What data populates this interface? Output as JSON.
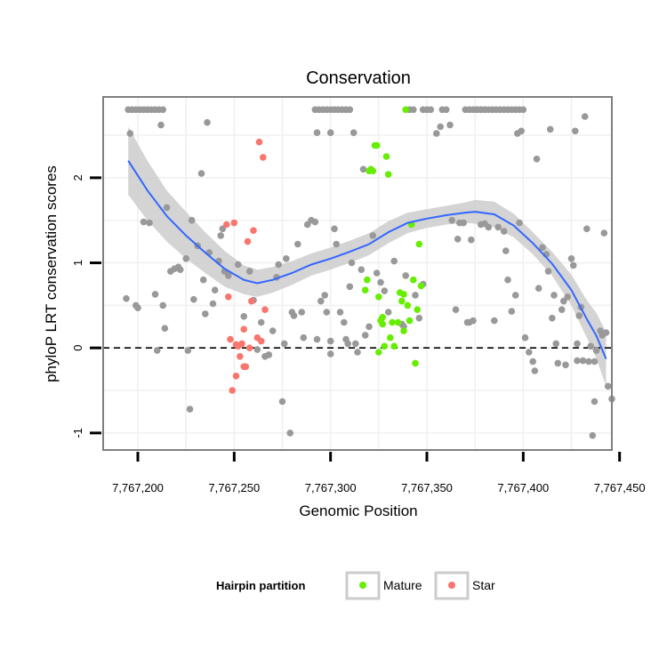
{
  "chart_data": {
    "type": "scatter",
    "title": "Conservation",
    "xlabel": "Genomic Position",
    "ylabel": "phyloP LRT conservation scores",
    "xlim": [
      7767182,
      7767446
    ],
    "ylim": [
      -1.2,
      2.95
    ],
    "xticks": [
      {
        "value": 7767200,
        "label": "7,767,200"
      },
      {
        "value": 7767250,
        "label": "7,767,250"
      },
      {
        "value": 7767300,
        "label": "7,767,300"
      },
      {
        "value": 7767350,
        "label": "7,767,350"
      },
      {
        "value": 7767400,
        "label": "7,767,400"
      },
      {
        "value": 7767450,
        "label": "7,767,450"
      }
    ],
    "yticks": [
      {
        "value": -1,
        "label": "-1"
      },
      {
        "value": 0,
        "label": "0"
      },
      {
        "value": 1,
        "label": "1"
      },
      {
        "value": 2,
        "label": "2"
      }
    ],
    "reference_line": {
      "y": 0,
      "style": "dashed"
    },
    "grid": true,
    "colors": {
      "other": "#999999",
      "mature": "#66ee00",
      "star": "#f8766d",
      "smooth": "#3366ff",
      "ribbon": "#cccccc",
      "panel_border": "#7f7f7f"
    },
    "legend": {
      "title": "Hairpin partition",
      "position": "bottom",
      "entries": [
        {
          "key": "mature",
          "label": "Mature"
        },
        {
          "key": "star",
          "label": "Star"
        }
      ]
    },
    "smooth": {
      "x": [
        7767195,
        7767205,
        7767215,
        7767225,
        7767235,
        7767245,
        7767255,
        7767262,
        7767270,
        7767280,
        7767290,
        7767300,
        7767310,
        7767320,
        7767330,
        7767340,
        7767350,
        7767360,
        7767370,
        7767375,
        7767385,
        7767395,
        7767405,
        7767415,
        7767425,
        7767433,
        7767438,
        7767443
      ],
      "y": [
        2.2,
        1.85,
        1.55,
        1.32,
        1.12,
        0.93,
        0.8,
        0.76,
        0.8,
        0.88,
        0.98,
        1.05,
        1.13,
        1.22,
        1.36,
        1.47,
        1.52,
        1.56,
        1.59,
        1.6,
        1.57,
        1.44,
        1.23,
        0.99,
        0.68,
        0.34,
        0.14,
        -0.13
      ],
      "lower": [
        1.8,
        1.5,
        1.25,
        1.05,
        0.88,
        0.72,
        0.63,
        0.6,
        0.65,
        0.74,
        0.85,
        0.92,
        1.0,
        1.09,
        1.23,
        1.35,
        1.41,
        1.45,
        1.47,
        1.46,
        1.42,
        1.3,
        1.1,
        0.85,
        0.5,
        0.12,
        -0.13,
        -0.45
      ],
      "upper": [
        2.6,
        2.2,
        1.85,
        1.6,
        1.36,
        1.14,
        0.97,
        0.92,
        0.95,
        1.02,
        1.11,
        1.18,
        1.26,
        1.35,
        1.49,
        1.59,
        1.63,
        1.67,
        1.71,
        1.74,
        1.72,
        1.58,
        1.36,
        1.13,
        0.86,
        0.56,
        0.41,
        0.19
      ]
    },
    "series": [
      {
        "key": "other",
        "points": [
          [
            7767195,
            2.8
          ],
          [
            7767197,
            2.8
          ],
          [
            7767199,
            2.8
          ],
          [
            7767201,
            2.8
          ],
          [
            7767203,
            2.8
          ],
          [
            7767205,
            2.8
          ],
          [
            7767207,
            2.8
          ],
          [
            7767209,
            2.8
          ],
          [
            7767211,
            2.8
          ],
          [
            7767213,
            2.8
          ],
          [
            7767196,
            2.52
          ],
          [
            7767194,
            0.58
          ],
          [
            7767199,
            0.5
          ],
          [
            7767200,
            0.47
          ],
          [
            7767203,
            1.48
          ],
          [
            7767206,
            1.47
          ],
          [
            7767209,
            0.63
          ],
          [
            7767210,
            -0.03
          ],
          [
            7767212,
            2.62
          ],
          [
            7767213,
            0.5
          ],
          [
            7767214,
            0.23
          ],
          [
            7767215,
            1.65
          ],
          [
            7767217,
            0.9
          ],
          [
            7767219,
            0.93
          ],
          [
            7767221,
            0.95
          ],
          [
            7767222,
            0.92
          ],
          [
            7767225,
            1.05
          ],
          [
            7767226,
            -0.03
          ],
          [
            7767227,
            -0.72
          ],
          [
            7767228,
            1.5
          ],
          [
            7767229,
            0.57
          ],
          [
            7767231,
            1.2
          ],
          [
            7767233,
            2.05
          ],
          [
            7767234,
            0.8
          ],
          [
            7767235,
            0.4
          ],
          [
            7767236,
            2.65
          ],
          [
            7767237,
            1.12
          ],
          [
            7767239,
            0.52
          ],
          [
            7767240,
            0.68
          ],
          [
            7767242,
            1.02
          ],
          [
            7767243,
            1.32
          ],
          [
            7767244,
            1.4
          ],
          [
            7767245,
            0.9
          ],
          [
            7767247,
            0.85
          ],
          [
            7767252,
            0.98
          ],
          [
            7767255,
            0.37
          ],
          [
            7767258,
            0.9
          ],
          [
            7767260,
            0.56
          ],
          [
            7767262,
            -0.02
          ],
          [
            7767264,
            0.3
          ],
          [
            7767266,
            -0.1
          ],
          [
            7767268,
            -0.08
          ],
          [
            7767270,
            0.2
          ],
          [
            7767272,
            0.83
          ],
          [
            7767273,
            0.98
          ],
          [
            7767275,
            -0.63
          ],
          [
            7767276,
            0.05
          ],
          [
            7767277,
            1.05
          ],
          [
            7767279,
            -1.0
          ],
          [
            7767280,
            0.42
          ],
          [
            7767281,
            0.38
          ],
          [
            7767283,
            1.22
          ],
          [
            7767285,
            0.42
          ],
          [
            7767286,
            0.12
          ],
          [
            7767288,
            1.45
          ],
          [
            7767290,
            1.5
          ],
          [
            7767292,
            1.48
          ],
          [
            7767293,
            0.1
          ],
          [
            7767295,
            0.55
          ],
          [
            7767297,
            0.62
          ],
          [
            7767298,
            0.42
          ],
          [
            7767300,
            -0.07
          ],
          [
            7767300,
            0.08
          ],
          [
            7767292,
            2.8
          ],
          [
            7767294,
            2.8
          ],
          [
            7767296,
            2.8
          ],
          [
            7767298,
            2.8
          ],
          [
            7767300,
            2.8
          ],
          [
            7767302,
            2.8
          ],
          [
            7767304,
            2.8
          ],
          [
            7767306,
            2.8
          ],
          [
            7767308,
            2.8
          ],
          [
            7767310,
            2.8
          ],
          [
            7767293,
            2.53
          ],
          [
            7767300,
            2.53
          ],
          [
            7767302,
            1.4
          ],
          [
            7767303,
            1.22
          ],
          [
            7767305,
            0.42
          ],
          [
            7767307,
            0.3
          ],
          [
            7767308,
            0.1
          ],
          [
            7767309,
            0.05
          ],
          [
            7767310,
            0.72
          ],
          [
            7767311,
            1.0
          ],
          [
            7767312,
            2.53
          ],
          [
            7767313,
            0.05
          ],
          [
            7767314,
            -0.05
          ],
          [
            7767316,
            0.92
          ],
          [
            7767317,
            2.1
          ],
          [
            7767318,
            0.15
          ],
          [
            7767320,
            0.25
          ],
          [
            7767322,
            1.32
          ],
          [
            7767324,
            0.88
          ],
          [
            7767326,
            0.77
          ],
          [
            7767328,
            0.67
          ],
          [
            7767330,
            0.42
          ],
          [
            7767333,
            1.02
          ],
          [
            7767337,
            0.28
          ],
          [
            7767338,
            0.25
          ],
          [
            7767339,
            0.85
          ],
          [
            7767344,
            0.62
          ],
          [
            7767346,
            0.35
          ],
          [
            7767348,
            0.75
          ],
          [
            7767341,
            2.8
          ],
          [
            7767343,
            2.8
          ],
          [
            7767348,
            2.8
          ],
          [
            7767350,
            2.8
          ],
          [
            7767352,
            2.8
          ],
          [
            7767355,
            2.52
          ],
          [
            7767357,
            2.6
          ],
          [
            7767358,
            2.8
          ],
          [
            7767360,
            2.8
          ],
          [
            7767362,
            2.62
          ],
          [
            7767363,
            1.5
          ],
          [
            7767365,
            0.45
          ],
          [
            7767366,
            1.28
          ],
          [
            7767367,
            1.47
          ],
          [
            7767369,
            1.47
          ],
          [
            7767371,
            0.3
          ],
          [
            7767372,
            0.3
          ],
          [
            7767373,
            1.27
          ],
          [
            7767374,
            0.32
          ],
          [
            7767376,
            2.8
          ],
          [
            7767378,
            2.8
          ],
          [
            7767380,
            2.8
          ],
          [
            7767382,
            2.8
          ],
          [
            7767384,
            2.8
          ],
          [
            7767386,
            2.8
          ],
          [
            7767388,
            2.8
          ],
          [
            7767390,
            2.8
          ],
          [
            7767392,
            2.8
          ],
          [
            7767394,
            2.8
          ],
          [
            7767396,
            2.8
          ],
          [
            7767398,
            2.8
          ],
          [
            7767400,
            2.8
          ],
          [
            7767370,
            2.8
          ],
          [
            7767372,
            2.8
          ],
          [
            7767374,
            2.8
          ],
          [
            7767376,
            2.8
          ],
          [
            7767378,
            2.8
          ],
          [
            7767380,
            2.8
          ],
          [
            7767378,
            1.45
          ],
          [
            7767380,
            1.46
          ],
          [
            7767382,
            1.42
          ],
          [
            7767385,
            0.32
          ],
          [
            7767387,
            1.42
          ],
          [
            7767390,
            1.37
          ],
          [
            7767391,
            1.14
          ],
          [
            7767392,
            0.8
          ],
          [
            7767394,
            0.43
          ],
          [
            7767396,
            0.62
          ],
          [
            7767397,
            2.52
          ],
          [
            7767398,
            1.47
          ],
          [
            7767399,
            2.55
          ],
          [
            7767401,
            0.12
          ],
          [
            7767403,
            -0.05
          ],
          [
            7767405,
            -0.16
          ],
          [
            7767406,
            -0.27
          ],
          [
            7767407,
            2.22
          ],
          [
            7767408,
            0.7
          ],
          [
            7767410,
            1.18
          ],
          [
            7767412,
            1.1
          ],
          [
            7767413,
            0.9
          ],
          [
            7767414,
            2.57
          ],
          [
            7767415,
            0.35
          ],
          [
            7767416,
            0.62
          ],
          [
            7767417,
            0.05
          ],
          [
            7767418,
            -0.18
          ],
          [
            7767420,
            0.45
          ],
          [
            7767421,
            0.55
          ],
          [
            7767422,
            -0.2
          ],
          [
            7767423,
            0.6
          ],
          [
            7767425,
            1.05
          ],
          [
            7767426,
            0.97
          ],
          [
            7767427,
            2.55
          ],
          [
            7767428,
            0.05
          ],
          [
            7767429,
            0.38
          ],
          [
            7767430,
            0.48
          ],
          [
            7767431,
            -0.15
          ],
          [
            7767432,
            2.72
          ],
          [
            7767433,
            1.4
          ],
          [
            7767434,
            -0.16
          ],
          [
            7767435,
            0.02
          ],
          [
            7767436,
            -1.03
          ],
          [
            7767437,
            -0.16
          ],
          [
            7767438,
            -0.03
          ],
          [
            7767440,
            0.2
          ],
          [
            7767441,
            0.15
          ],
          [
            7767442,
            1.35
          ],
          [
            7767443,
            0.18
          ],
          [
            7767444,
            -0.45
          ],
          [
            7767446,
            -0.6
          ],
          [
            7767437,
            -0.63
          ],
          [
            7767428,
            -0.15
          ]
        ]
      },
      {
        "key": "mature",
        "points": [
          [
            7767318,
            0.68
          ],
          [
            7767319,
            0.8
          ],
          [
            7767320,
            2.08
          ],
          [
            7767321,
            2.1
          ],
          [
            7767322,
            2.08
          ],
          [
            7767323,
            2.38
          ],
          [
            7767324,
            2.38
          ],
          [
            7767325,
            0.6
          ],
          [
            7767326,
            0.32
          ],
          [
            7767327,
            0.28
          ],
          [
            7767328,
            0.02
          ],
          [
            7767329,
            2.25
          ],
          [
            7767330,
            2.04
          ],
          [
            7767331,
            0.12
          ],
          [
            7767332,
            0.3
          ],
          [
            7767333,
            0.02
          ],
          [
            7767335,
            0.3
          ],
          [
            7767336,
            0.65
          ],
          [
            7767337,
            0.55
          ],
          [
            7767338,
            0.2
          ],
          [
            7767338,
            0.63
          ],
          [
            7767339,
            2.8
          ],
          [
            7767340,
            0.5
          ],
          [
            7767341,
            0.32
          ],
          [
            7767342,
            1.45
          ],
          [
            7767343,
            0.8
          ],
          [
            7767344,
            -0.18
          ],
          [
            7767345,
            0.45
          ],
          [
            7767346,
            1.22
          ],
          [
            7767347,
            0.73
          ],
          [
            7767325,
            -0.05
          ],
          [
            7767327,
            0.36
          ]
        ]
      },
      {
        "key": "star",
        "points": [
          [
            7767246,
            1.45
          ],
          [
            7767247,
            0.6
          ],
          [
            7767248,
            0.1
          ],
          [
            7767249,
            -0.5
          ],
          [
            7767250,
            1.47
          ],
          [
            7767251,
            -0.33
          ],
          [
            7767252,
            0.02
          ],
          [
            7767253,
            -0.1
          ],
          [
            7767254,
            0.05
          ],
          [
            7767255,
            0.22
          ],
          [
            7767256,
            -0.22
          ],
          [
            7767257,
            1.25
          ],
          [
            7767258,
            0.0
          ],
          [
            7767259,
            0.55
          ],
          [
            7767260,
            1.38
          ],
          [
            7767262,
            0.12
          ],
          [
            7767263,
            2.42
          ],
          [
            7767264,
            0.08
          ],
          [
            7767265,
            2.24
          ],
          [
            7767266,
            0.45
          ],
          [
            7767251,
            0.04
          ],
          [
            7767255,
            -0.22
          ]
        ]
      }
    ]
  }
}
